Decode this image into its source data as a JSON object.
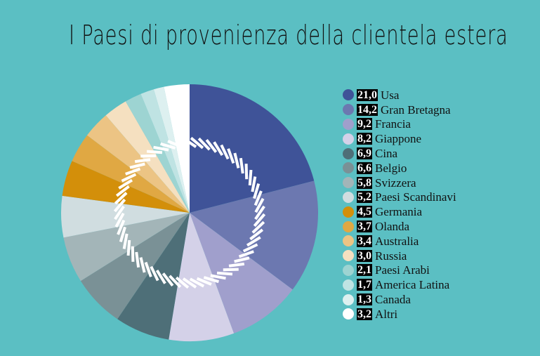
{
  "chart_data": {
    "type": "pie",
    "title": "I Paesi di provenienza della clientela estera",
    "start": "top",
    "direction": "clockwise",
    "legend_position": "right",
    "slices": [
      {
        "label": "Usa",
        "value": 21.0,
        "value_text": "21,0",
        "color": "#3f5398"
      },
      {
        "label": "Gran Bretagna",
        "value": 14.2,
        "value_text": "14,2",
        "color": "#6c78b0"
      },
      {
        "label": "Francia",
        "value": 9.2,
        "value_text": "9,2",
        "color": "#a09fcc"
      },
      {
        "label": "Giappone",
        "value": 8.2,
        "value_text": "8,2",
        "color": "#d4d1e8"
      },
      {
        "label": "Cina",
        "value": 6.9,
        "value_text": "6,9",
        "color": "#4e6f78"
      },
      {
        "label": "Belgio",
        "value": 6.6,
        "value_text": "6,6",
        "color": "#7a9196"
      },
      {
        "label": "Svizzera",
        "value": 5.8,
        "value_text": "5,8",
        "color": "#a3b5b8"
      },
      {
        "label": "Paesi Scandinavi",
        "value": 5.2,
        "value_text": "5,2",
        "color": "#d0dde0"
      },
      {
        "label": "Germania",
        "value": 4.5,
        "value_text": "4,5",
        "color": "#d38f0a"
      },
      {
        "label": "Olanda",
        "value": 3.7,
        "value_text": "3,7",
        "color": "#e0a843"
      },
      {
        "label": "Australia",
        "value": 3.4,
        "value_text": "3,4",
        "color": "#ecc484"
      },
      {
        "label": "Russia",
        "value": 3.0,
        "value_text": "3,0",
        "color": "#f5e0c0"
      },
      {
        "label": "Paesi Arabi",
        "value": 2.1,
        "value_text": "2,1",
        "color": "#9dd4d2"
      },
      {
        "label": "America Latina",
        "value": 1.7,
        "value_text": "1,7",
        "color": "#bfe3e3"
      },
      {
        "label": "Canada",
        "value": 1.3,
        "value_text": "1,3",
        "color": "#ddf0f0"
      },
      {
        "label": "Altri",
        "value": 3.2,
        "value_text": "3,2",
        "color": "#ffffff"
      }
    ]
  }
}
